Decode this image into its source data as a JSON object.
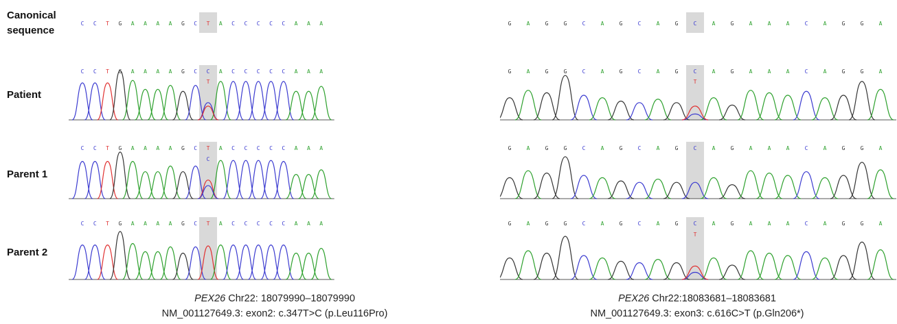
{
  "row_labels": {
    "canonical_line1": "Canonical",
    "canonical_line2": "sequence",
    "patient": "Patient",
    "parent1": "Parent 1",
    "parent2": "Parent 2"
  },
  "colors": {
    "A": "#2ca02c",
    "C": "#3a3ad0",
    "G": "#333333",
    "T": "#e03030",
    "highlight": "#d9d9d9"
  },
  "panels": [
    {
      "id": "left",
      "canonical": [
        "C",
        "C",
        "T",
        "G",
        "A",
        "A",
        "A",
        "A",
        "G",
        "C",
        "T",
        "A",
        "C",
        "C",
        "C",
        "C",
        "C",
        "A",
        "A",
        "A"
      ],
      "highlight_index": 10,
      "tracks": [
        {
          "row": "patient",
          "bases": [
            "C",
            "C",
            "T",
            "G",
            "A",
            "A",
            "A",
            "A",
            "G",
            "C",
            "C",
            "A",
            "C",
            "C",
            "C",
            "C",
            "C",
            "A",
            "A",
            "A"
          ],
          "secondary": "T",
          "peaks": [
            0.75,
            0.75,
            0.75,
            1,
            0.8,
            0.62,
            0.62,
            0.7,
            0.58,
            0.7,
            0.35,
            0.78,
            0.78,
            0.78,
            0.78,
            0.78,
            0.78,
            0.58,
            0.58,
            0.68
          ]
        },
        {
          "row": "parent1",
          "bases": [
            "C",
            "C",
            "T",
            "G",
            "A",
            "A",
            "A",
            "A",
            "G",
            "C",
            "T",
            "A",
            "C",
            "C",
            "C",
            "C",
            "C",
            "A",
            "A",
            "A"
          ],
          "secondary": "C",
          "peaks": [
            0.8,
            0.8,
            0.8,
            1,
            0.8,
            0.58,
            0.58,
            0.7,
            0.58,
            0.7,
            0.4,
            0.82,
            0.82,
            0.82,
            0.82,
            0.82,
            0.8,
            0.52,
            0.52,
            0.62
          ]
        },
        {
          "row": "parent2",
          "bases": [
            "C",
            "C",
            "T",
            "G",
            "A",
            "A",
            "A",
            "A",
            "G",
            "C",
            "T",
            "A",
            "C",
            "C",
            "C",
            "C",
            "C",
            "A",
            "A",
            "A"
          ],
          "secondary": "",
          "peaks": [
            0.72,
            0.72,
            0.72,
            1,
            0.75,
            0.58,
            0.58,
            0.68,
            0.55,
            0.68,
            0.7,
            0.72,
            0.72,
            0.72,
            0.72,
            0.72,
            0.72,
            0.55,
            0.55,
            0.65
          ]
        }
      ],
      "caption": {
        "gene": "PEX26",
        "location": " Chr22: 18079990–18079990",
        "variant": "NM_001127649.3: exon2: c.347T>C (p.Leu116Pro)"
      }
    },
    {
      "id": "right",
      "canonical": [
        "G",
        "A",
        "G",
        "G",
        "C",
        "A",
        "G",
        "C",
        "A",
        "G",
        "C",
        "A",
        "G",
        "A",
        "A",
        "A",
        "C",
        "A",
        "G",
        "G",
        "A"
      ],
      "highlight_index": 10,
      "tracks": [
        {
          "row": "patient",
          "bases": [
            "G",
            "A",
            "G",
            "G",
            "C",
            "A",
            "G",
            "C",
            "A",
            "G",
            "C",
            "A",
            "G",
            "A",
            "A",
            "A",
            "C",
            "A",
            "G",
            "G",
            "A"
          ],
          "secondary": "T",
          "peaks": [
            0.45,
            0.6,
            0.55,
            0.9,
            0.5,
            0.45,
            0.38,
            0.35,
            0.42,
            0.35,
            0.12,
            0.45,
            0.3,
            0.6,
            0.55,
            0.5,
            0.58,
            0.45,
            0.5,
            0.78,
            0.62
          ]
        },
        {
          "row": "parent1",
          "bases": [
            "G",
            "A",
            "G",
            "G",
            "C",
            "A",
            "G",
            "C",
            "A",
            "G",
            "C",
            "A",
            "G",
            "A",
            "A",
            "A",
            "C",
            "A",
            "G",
            "G",
            "A"
          ],
          "secondary": "",
          "peaks": [
            0.45,
            0.6,
            0.55,
            0.9,
            0.5,
            0.45,
            0.38,
            0.35,
            0.42,
            0.35,
            0.35,
            0.45,
            0.3,
            0.6,
            0.55,
            0.5,
            0.58,
            0.45,
            0.5,
            0.78,
            0.62
          ]
        },
        {
          "row": "parent2",
          "bases": [
            "G",
            "A",
            "G",
            "G",
            "C",
            "A",
            "G",
            "C",
            "A",
            "G",
            "C",
            "A",
            "G",
            "A",
            "A",
            "A",
            "C",
            "A",
            "G",
            "G",
            "A"
          ],
          "secondary": "T",
          "peaks": [
            0.45,
            0.6,
            0.55,
            0.9,
            0.5,
            0.45,
            0.38,
            0.35,
            0.42,
            0.35,
            0.15,
            0.45,
            0.3,
            0.6,
            0.55,
            0.5,
            0.58,
            0.45,
            0.5,
            0.78,
            0.62
          ]
        }
      ],
      "caption": {
        "gene": "PEX26",
        "location": " Chr22:18083681–18083681",
        "variant": "NM_001127649.3: exon3: c.616C>T (p.Gln206*)"
      }
    }
  ]
}
